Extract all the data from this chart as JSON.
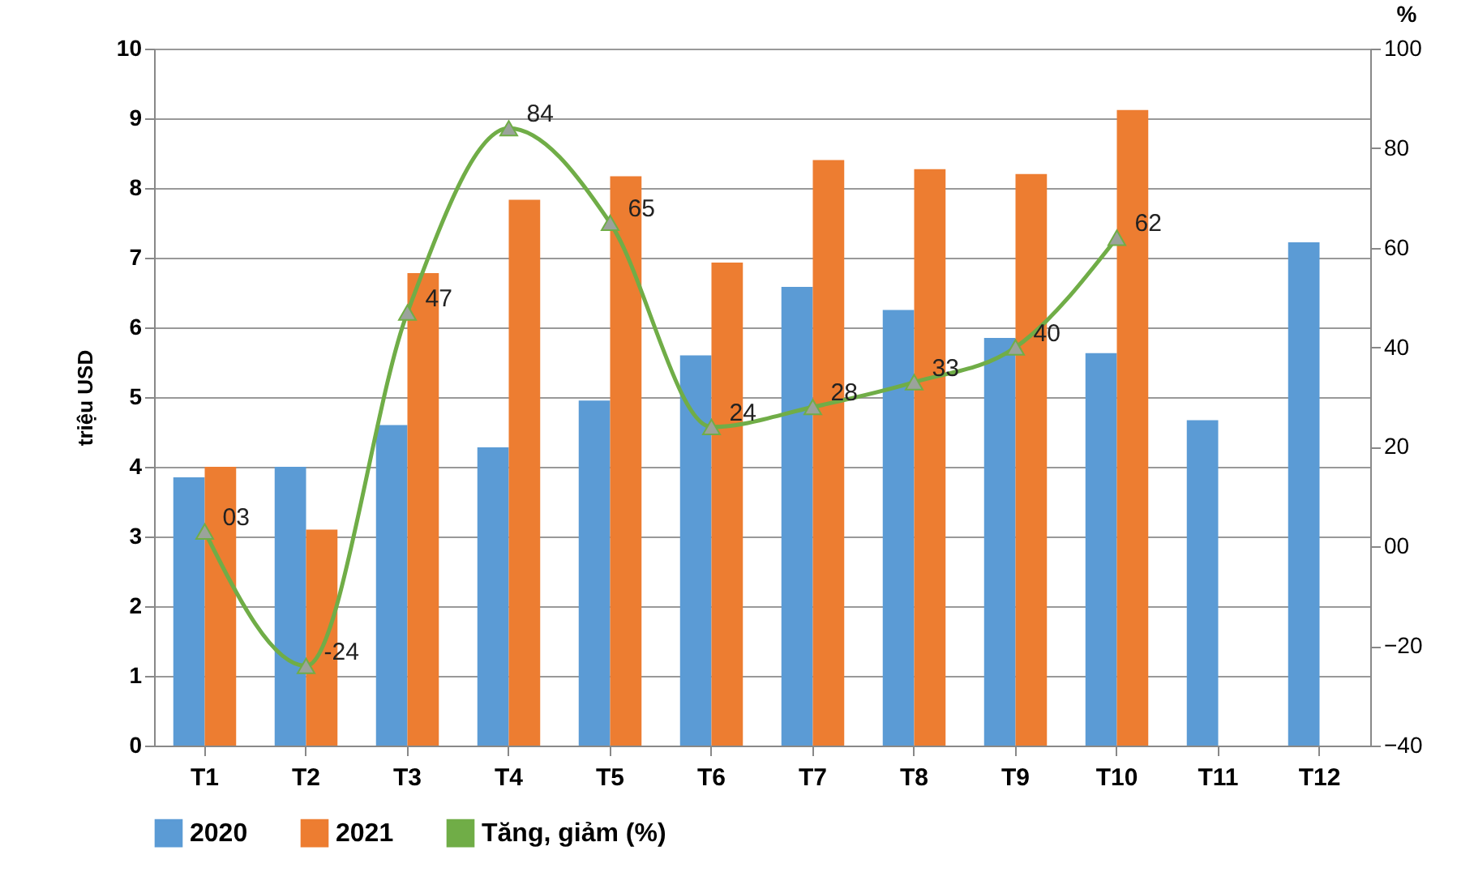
{
  "chart_data": {
    "type": "bar",
    "ylabel": "triệu USD",
    "y2label": "%",
    "categories": [
      "T1",
      "T2",
      "T3",
      "T4",
      "T5",
      "T6",
      "T7",
      "T8",
      "T9",
      "T10",
      "T11",
      "T12"
    ],
    "series": [
      {
        "name": "2020",
        "color": "#5b9bd5",
        "values": [
          3.85,
          4.0,
          4.6,
          4.28,
          4.95,
          5.6,
          6.58,
          6.25,
          5.85,
          5.63,
          4.67,
          7.22
        ]
      },
      {
        "name": "2021",
        "color": "#ed7d31",
        "values": [
          4.0,
          3.1,
          6.78,
          7.83,
          8.17,
          6.93,
          8.4,
          8.27,
          8.2,
          9.12,
          null,
          null
        ]
      },
      {
        "name": "Tăng, giảm (%)",
        "type": "line",
        "axis": "y2",
        "color": "#70ad47",
        "marker": "triangle",
        "values": [
          3,
          -24,
          47,
          84,
          65,
          24,
          28,
          33,
          40,
          62,
          null,
          null
        ],
        "value_labels": [
          "03",
          "-24",
          "47",
          "84",
          "65",
          "24",
          "28",
          "33",
          "40",
          "62",
          null,
          null
        ]
      }
    ],
    "ylim": [
      0,
      10
    ],
    "yticks": [
      0,
      1,
      2,
      3,
      4,
      5,
      6,
      7,
      8,
      9,
      10
    ],
    "y2lim": [
      -40,
      100
    ],
    "y2ticks": [
      -40,
      -20,
      {
        "value": 0,
        "label": "00"
      },
      20,
      40,
      60,
      80,
      100
    ],
    "grid": "y",
    "legend": "bottom"
  }
}
